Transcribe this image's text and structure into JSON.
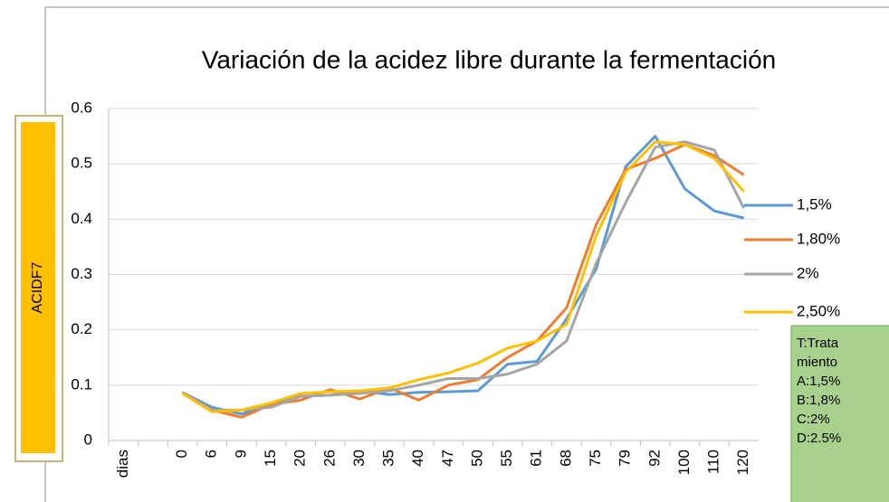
{
  "chart_data": {
    "type": "line",
    "title": "Variación de la acidez libre durante la fermentación",
    "y_label": "ACIDF7",
    "categories": [
      "dias",
      null,
      "0",
      "6",
      "9",
      "15",
      "20",
      "26",
      "30",
      "35",
      "40",
      "47",
      "50",
      "55",
      "61",
      "68",
      "75",
      "79",
      "92",
      "100",
      "110",
      "120"
    ],
    "series": [
      {
        "name": "1,5%",
        "color": "#5b9bd5",
        "values": [
          null,
          null,
          0.087,
          0.06,
          0.048,
          0.065,
          0.08,
          0.082,
          0.09,
          0.083,
          0.087,
          0.088,
          0.09,
          0.138,
          0.143,
          0.22,
          0.31,
          0.495,
          0.55,
          0.455,
          0.415,
          0.402
        ]
      },
      {
        "name": "1,80%",
        "color": "#ed7d31",
        "values": [
          null,
          null,
          0.087,
          0.055,
          0.042,
          0.065,
          0.073,
          0.092,
          0.075,
          0.095,
          0.073,
          0.1,
          0.11,
          0.15,
          0.18,
          0.24,
          0.39,
          0.49,
          0.51,
          0.535,
          0.515,
          0.48
        ]
      },
      {
        "name": "2%",
        "color": "#a5a5a5",
        "values": [
          null,
          null,
          0.087,
          0.055,
          0.055,
          0.06,
          0.08,
          0.082,
          0.085,
          0.09,
          0.1,
          0.112,
          0.112,
          0.12,
          0.138,
          0.18,
          0.32,
          0.43,
          0.53,
          0.54,
          0.525,
          0.42
        ]
      },
      {
        "name": "2,50%",
        "color": "#ffc000",
        "values": [
          null,
          null,
          0.085,
          0.052,
          0.055,
          0.068,
          0.085,
          0.088,
          0.09,
          0.095,
          0.11,
          0.122,
          0.14,
          0.167,
          0.18,
          0.21,
          0.37,
          0.485,
          0.54,
          0.535,
          0.51,
          0.45
        ]
      }
    ],
    "ylim": [
      0,
      0.6
    ],
    "yticks": [
      0,
      0.1,
      0.2,
      0.3,
      0.4,
      0.5,
      0.6
    ],
    "grid": true,
    "legend": "right",
    "annotation": {
      "lines": [
        "T:Trata",
        "miento",
        "A:1,5%",
        "B:1,8%",
        "C:2%",
        "D:2.5%"
      ]
    }
  }
}
